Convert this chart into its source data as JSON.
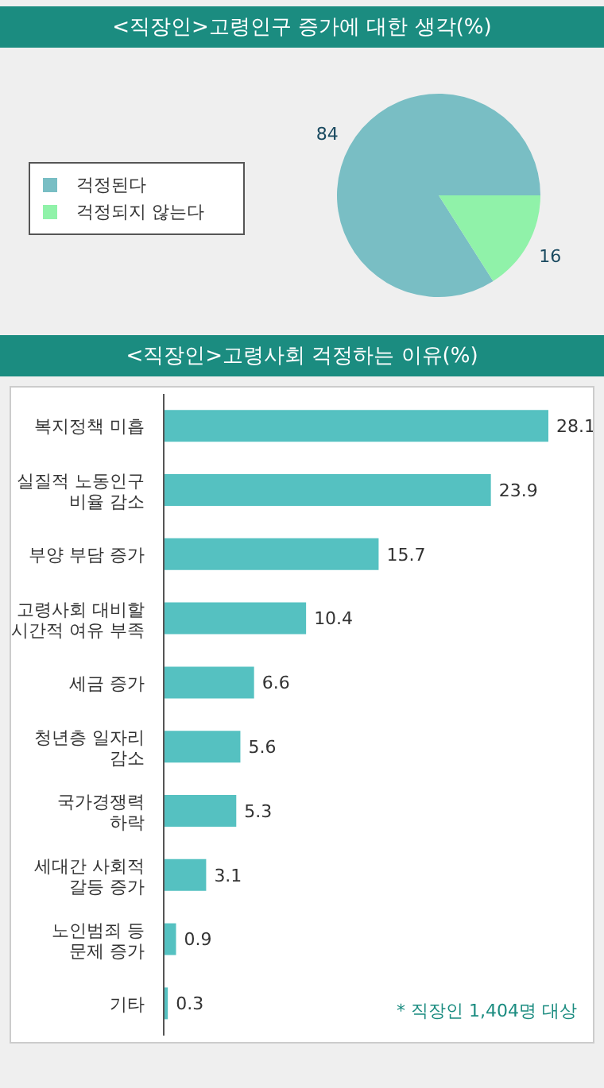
{
  "chart_data": [
    {
      "type": "pie",
      "title": "<직장인>고령인구 증가에 대한 생각(%)",
      "categories": [
        "걱정된다",
        "걱정되지 않는다"
      ],
      "values": [
        84,
        16
      ],
      "colors": [
        "#79bec4",
        "#90f2a9"
      ],
      "data_labels": true,
      "legend": "left"
    },
    {
      "type": "bar",
      "orientation": "horizontal",
      "title": "<직장인>고령사회 걱정하는 이유(%)",
      "categories": [
        "복지정책 미흡",
        "실질적 노동인구\n비율 감소",
        "부양 부담 증가",
        "고령사회 대비할\n시간적 여유 부족",
        "세금 증가",
        "청년층 일자리\n감소",
        "국가경쟁력\n하락",
        "세대간 사회적\n갈등 증가",
        "노인범죄 등\n문제 증가",
        "기타"
      ],
      "values": [
        28.1,
        23.9,
        15.7,
        10.4,
        6.6,
        5.6,
        5.3,
        3.1,
        0.9,
        0.3
      ],
      "color": "#55c1c1",
      "tick_labels": "y",
      "data_labels": true,
      "annotations": [
        "* 직장인 1,404명 대상"
      ]
    }
  ]
}
